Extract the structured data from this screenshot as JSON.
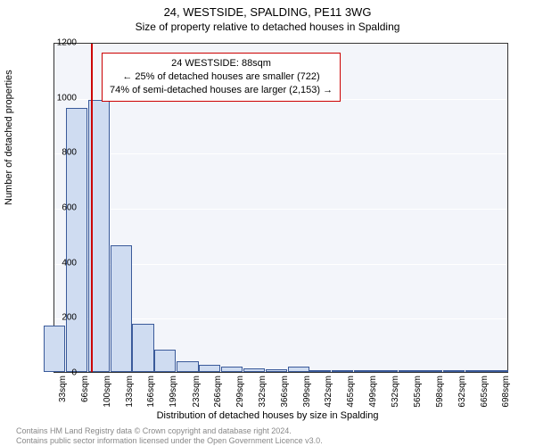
{
  "title": "24, WESTSIDE, SPALDING, PE11 3WG",
  "subtitle": "Size of property relative to detached houses in Spalding",
  "ylabel": "Number of detached properties",
  "xlabel": "Distribution of detached houses by size in Spalding",
  "footer_line1": "Contains HM Land Registry data © Crown copyright and database right 2024.",
  "footer_line2": "Contains public sector information licensed under the Open Government Licence v3.0.",
  "chart": {
    "type": "histogram",
    "background_color": "#f3f5fa",
    "grid_color": "#ffffff",
    "bar_fill": "#cfdcf1",
    "bar_border": "#3a5a9a",
    "marker_color": "#cc0000",
    "ylim": [
      0,
      1200
    ],
    "ytick_step": 200,
    "yticks": [
      0,
      200,
      400,
      600,
      800,
      1000,
      1200
    ],
    "xticks": [
      "33sqm",
      "66sqm",
      "100sqm",
      "133sqm",
      "166sqm",
      "199sqm",
      "233sqm",
      "266sqm",
      "299sqm",
      "332sqm",
      "366sqm",
      "399sqm",
      "432sqm",
      "465sqm",
      "499sqm",
      "532sqm",
      "565sqm",
      "598sqm",
      "632sqm",
      "665sqm",
      "698sqm"
    ],
    "x_start": 33,
    "x_end": 715,
    "values": [
      {
        "x": 33,
        "y": 170
      },
      {
        "x": 66,
        "y": 960
      },
      {
        "x": 100,
        "y": 990
      },
      {
        "x": 133,
        "y": 460
      },
      {
        "x": 166,
        "y": 175
      },
      {
        "x": 199,
        "y": 80
      },
      {
        "x": 233,
        "y": 40
      },
      {
        "x": 266,
        "y": 25
      },
      {
        "x": 299,
        "y": 20
      },
      {
        "x": 332,
        "y": 12
      },
      {
        "x": 366,
        "y": 10
      },
      {
        "x": 399,
        "y": 20
      },
      {
        "x": 432,
        "y": 3
      },
      {
        "x": 465,
        "y": 2
      },
      {
        "x": 499,
        "y": 2
      },
      {
        "x": 532,
        "y": 1
      },
      {
        "x": 565,
        "y": 1
      },
      {
        "x": 598,
        "y": 1
      },
      {
        "x": 632,
        "y": 1
      },
      {
        "x": 665,
        "y": 1
      },
      {
        "x": 698,
        "y": 1
      }
    ],
    "marker_x": 88,
    "label_fontsize": 11,
    "tick_fontsize": 10
  },
  "info_box": {
    "line1": "24 WESTSIDE: 88sqm",
    "line2": "← 25% of detached houses are smaller (722)",
    "line3": "74% of semi-detached houses are larger (2,153) →"
  }
}
